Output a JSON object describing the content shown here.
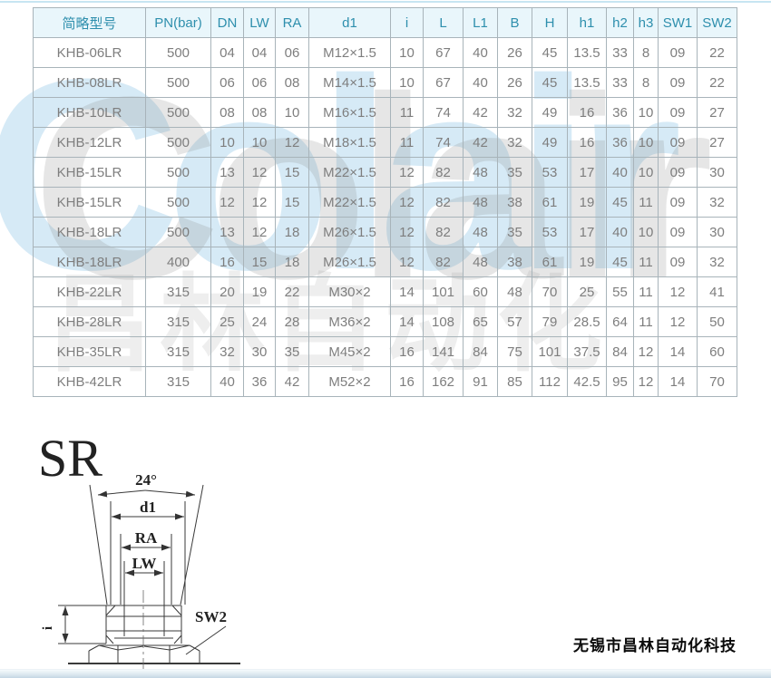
{
  "colors": {
    "header_bg": "#e9f6fb",
    "header_text": "#2e8fad",
    "cell_text": "#7e7e7e",
    "table_border": "#a8b4ba",
    "top_line": "#c7e5f2"
  },
  "watermark": {
    "latin": "Colair",
    "chinese": "昌林自动化"
  },
  "table": {
    "columns": [
      "简略型号",
      "PN(bar)",
      "DN",
      "LW",
      "RA",
      "d1",
      "i",
      "L",
      "L1",
      "B",
      "H",
      "h1",
      "h2",
      "h3",
      "SW1",
      "SW2"
    ],
    "rows": [
      [
        "KHB-06LR",
        "500",
        "04",
        "04",
        "06",
        "M12×1.5",
        "10",
        "67",
        "40",
        "26",
        "45",
        "13.5",
        "33",
        "8",
        "09",
        "22"
      ],
      [
        "KHB-08LR",
        "500",
        "06",
        "06",
        "08",
        "M14×1.5",
        "10",
        "67",
        "40",
        "26",
        "45",
        "13.5",
        "33",
        "8",
        "09",
        "22"
      ],
      [
        "KHB-10LR",
        "500",
        "08",
        "08",
        "10",
        "M16×1.5",
        "11",
        "74",
        "42",
        "32",
        "49",
        "16",
        "36",
        "10",
        "09",
        "27"
      ],
      [
        "KHB-12LR",
        "500",
        "10",
        "10",
        "12",
        "M18×1.5",
        "11",
        "74",
        "42",
        "32",
        "49",
        "16",
        "36",
        "10",
        "09",
        "27"
      ],
      [
        "KHB-15LR",
        "500",
        "13",
        "12",
        "15",
        "M22×1.5",
        "12",
        "82",
        "48",
        "35",
        "53",
        "17",
        "40",
        "10",
        "09",
        "30"
      ],
      [
        "KHB-15LR",
        "500",
        "12",
        "12",
        "15",
        "M22×1.5",
        "12",
        "82",
        "48",
        "38",
        "61",
        "19",
        "45",
        "11",
        "09",
        "32"
      ],
      [
        "KHB-18LR",
        "500",
        "13",
        "12",
        "18",
        "M26×1.5",
        "12",
        "82",
        "48",
        "35",
        "53",
        "17",
        "40",
        "10",
        "09",
        "30"
      ],
      [
        "KHB-18LR",
        "400",
        "16",
        "15",
        "18",
        "M26×1.5",
        "12",
        "82",
        "48",
        "38",
        "61",
        "19",
        "45",
        "11",
        "09",
        "32"
      ],
      [
        "KHB-22LR",
        "315",
        "20",
        "19",
        "22",
        "M30×2",
        "14",
        "101",
        "60",
        "48",
        "70",
        "25",
        "55",
        "11",
        "12",
        "41"
      ],
      [
        "KHB-28LR",
        "315",
        "25",
        "24",
        "28",
        "M36×2",
        "14",
        "108",
        "65",
        "57",
        "79",
        "28.5",
        "64",
        "11",
        "12",
        "50"
      ],
      [
        "KHB-35LR",
        "315",
        "32",
        "30",
        "35",
        "M45×2",
        "16",
        "141",
        "84",
        "75",
        "101",
        "37.5",
        "84",
        "12",
        "14",
        "60"
      ],
      [
        "KHB-42LR",
        "315",
        "40",
        "36",
        "42",
        "M52×2",
        "16",
        "162",
        "91",
        "85",
        "112",
        "42.5",
        "95",
        "12",
        "14",
        "70"
      ]
    ]
  },
  "diagram": {
    "title": "SR",
    "labels": {
      "angle": "24°",
      "d1": "d1",
      "ra": "RA",
      "lw": "LW",
      "sw2": "SW2",
      "i": "i"
    }
  },
  "footer": {
    "company": "无锡市昌林自动化科技"
  }
}
